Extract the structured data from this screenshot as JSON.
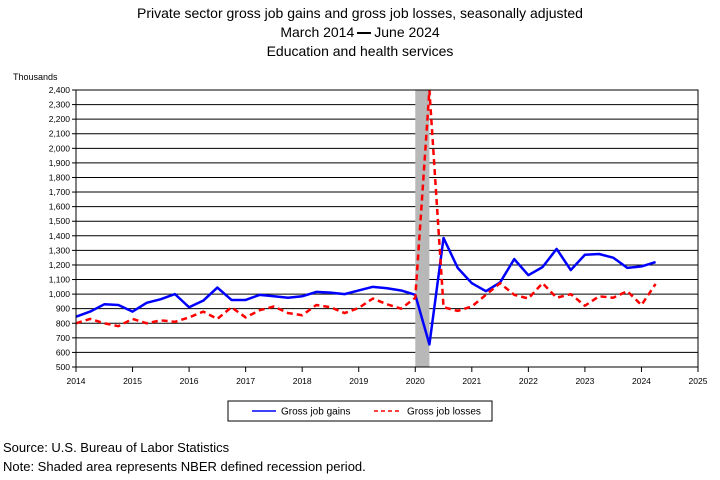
{
  "header": {
    "title": "Private sector gross job gains and gross job losses, seasonally adjusted",
    "period_start": "March 2014",
    "period_end": "June 2024",
    "subtitle": "Education and health services"
  },
  "chart_data": {
    "type": "line",
    "ylabel": "Thousands",
    "xlabel": "",
    "ylim": [
      500,
      2400
    ],
    "xlim": [
      2014,
      2025
    ],
    "y_ticks": [
      500,
      600,
      700,
      800,
      900,
      1000,
      1100,
      1200,
      1300,
      1400,
      1500,
      1600,
      1700,
      1800,
      1900,
      2000,
      2100,
      2200,
      2300,
      2400
    ],
    "y_tick_labels": [
      "500",
      "600",
      "700",
      "800",
      "900",
      "1,000",
      "1,100",
      "1,200",
      "1,300",
      "1,400",
      "1,500",
      "1,600",
      "1,700",
      "1,800",
      "1,900",
      "2,000",
      "2,100",
      "2,200",
      "2,300",
      "2,400"
    ],
    "x_ticks": [
      2014,
      2015,
      2016,
      2017,
      2018,
      2019,
      2020,
      2021,
      2022,
      2023,
      2024,
      2025
    ],
    "x_tick_labels": [
      "2014",
      "2015",
      "2016",
      "2017",
      "2018",
      "2019",
      "2020",
      "2021",
      "2022",
      "2023",
      "2024",
      "2025"
    ],
    "grid": "horizontal",
    "legend_position": "bottom-center",
    "recession": {
      "start": 2020.0,
      "end": 2020.25
    },
    "series": [
      {
        "name": "Gross job gains",
        "color": "#0000ff",
        "style": "solid",
        "x": [
          2014.0,
          2014.25,
          2014.5,
          2014.75,
          2015.0,
          2015.25,
          2015.5,
          2015.75,
          2016.0,
          2016.25,
          2016.5,
          2016.75,
          2017.0,
          2017.25,
          2017.5,
          2017.75,
          2018.0,
          2018.25,
          2018.5,
          2018.75,
          2019.0,
          2019.25,
          2019.5,
          2019.75,
          2020.0,
          2020.25,
          2020.5,
          2020.75,
          2021.0,
          2021.25,
          2021.5,
          2021.75,
          2022.0,
          2022.25,
          2022.5,
          2022.75,
          2023.0,
          2023.25,
          2023.5,
          2023.75,
          2024.0,
          2024.25
        ],
        "values": [
          845,
          880,
          930,
          925,
          880,
          940,
          965,
          1000,
          910,
          955,
          1045,
          960,
          960,
          995,
          985,
          975,
          985,
          1015,
          1010,
          1000,
          1025,
          1050,
          1040,
          1025,
          995,
          655,
          1385,
          1180,
          1075,
          1020,
          1080,
          1240,
          1130,
          1185,
          1310,
          1165,
          1270,
          1275,
          1250,
          1180,
          1190,
          1220
        ]
      },
      {
        "name": "Gross job losses",
        "color": "#ff0000",
        "style": "dashed",
        "x": [
          2014.0,
          2014.25,
          2014.5,
          2014.75,
          2015.0,
          2015.25,
          2015.5,
          2015.75,
          2016.0,
          2016.25,
          2016.5,
          2016.75,
          2017.0,
          2017.25,
          2017.5,
          2017.75,
          2018.0,
          2018.25,
          2018.5,
          2018.75,
          2019.0,
          2019.25,
          2019.5,
          2019.75,
          2020.0,
          2020.25,
          2020.5,
          2020.75,
          2021.0,
          2021.25,
          2021.5,
          2021.75,
          2022.0,
          2022.25,
          2022.5,
          2022.75,
          2023.0,
          2023.25,
          2023.5,
          2023.75,
          2024.0,
          2024.25
        ],
        "values": [
          800,
          830,
          800,
          780,
          830,
          800,
          820,
          810,
          840,
          880,
          830,
          910,
          840,
          890,
          915,
          870,
          855,
          925,
          910,
          870,
          905,
          970,
          930,
          900,
          975,
          2400,
          910,
          885,
          915,
          995,
          1075,
          995,
          970,
          1075,
          975,
          1000,
          920,
          985,
          975,
          1020,
          925,
          1070
        ]
      }
    ]
  },
  "legend": {
    "gains_label": "Gross job gains",
    "losses_label": "Gross job losses"
  },
  "footer": {
    "source": "Source: U.S. Bureau of Labor Statistics",
    "note": "Note: Shaded area represents NBER defined recession period."
  }
}
